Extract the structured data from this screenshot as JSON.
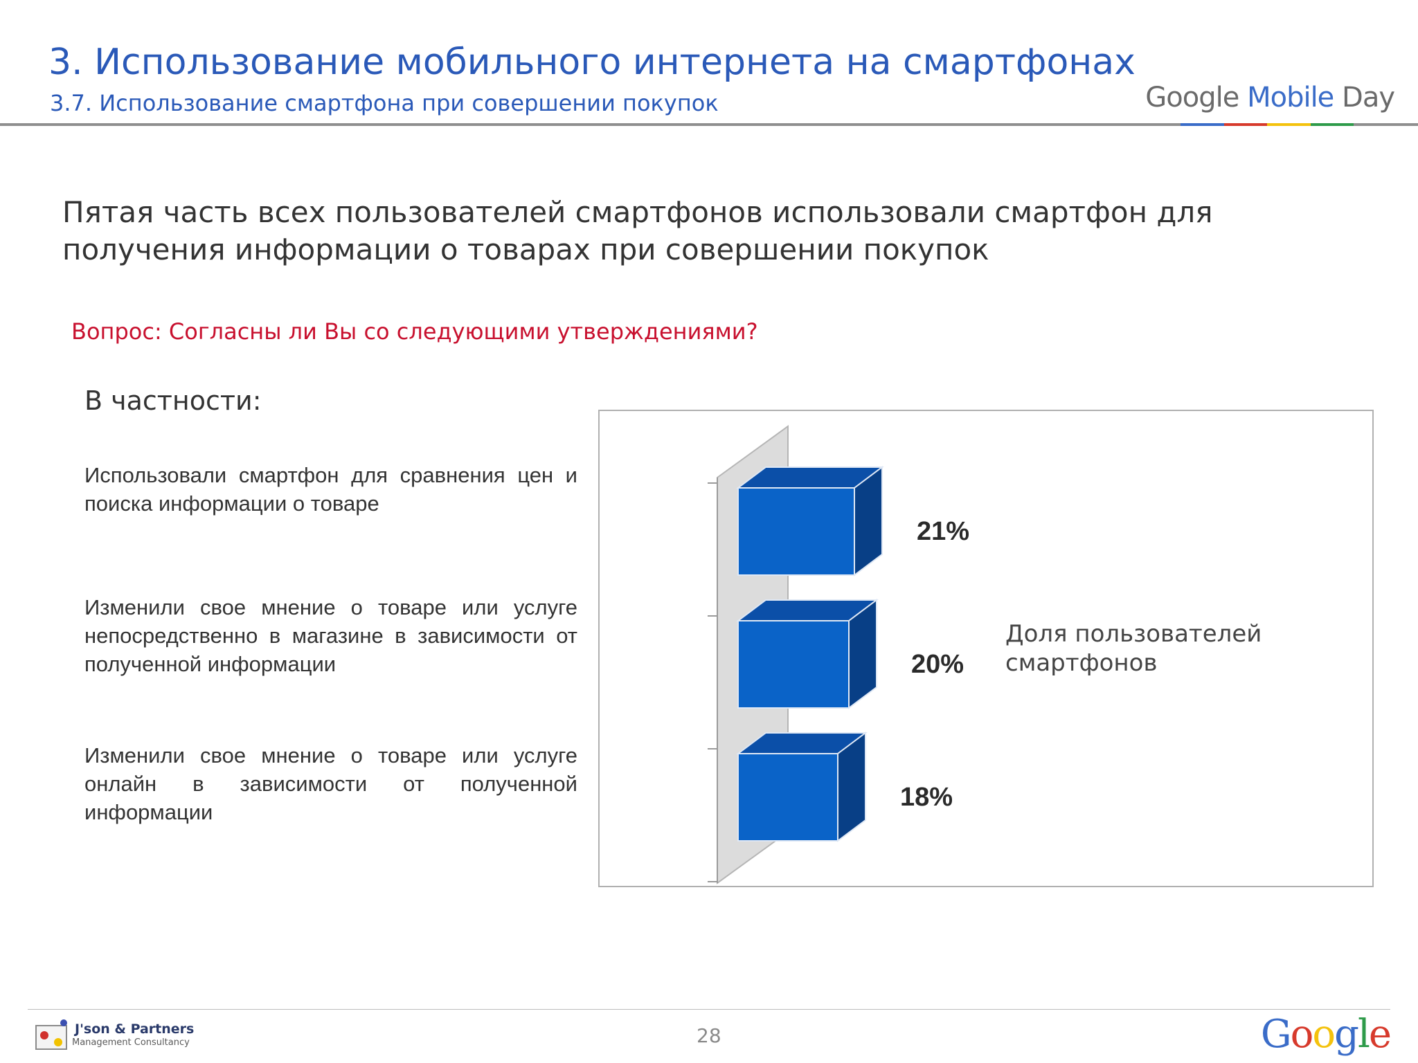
{
  "header": {
    "section_title": "3. Использование мобильного интернета на смартфонах",
    "subsection_title": "3.7. Использование смартфона при совершении покупок",
    "logo": {
      "google": "Google",
      "mobile": "Mobile",
      "day": "Day"
    }
  },
  "headline": "Пятая часть всех пользователей смартфонов использовали смартфон для получения информации о товарах при совершении покупок",
  "question": "Вопрос: Согласны ли Вы со следующими утверждениями?",
  "specifically_label": "В частности:",
  "statements": [
    "Использовали смартфон для сравнения цен и поиска информации о товаре",
    "Изменили свое мнение о товаре или услуге непосредственно в магазине в зависимости от полученной информации",
    "Изменили свое мнение о товаре или услуге онлайн в зависимости от полученной информации"
  ],
  "chart_data": {
    "type": "bar",
    "orientation": "horizontal",
    "style": "3d",
    "categories": [
      "Использовали смартфон для сравнения цен и поиска информации о товаре",
      "Изменили свое мнение о товаре или услуге непосредственно в магазине в зависимости от полученной информации",
      "Изменили свое мнение о товаре или услуге онлайн в зависимости от полученной информации"
    ],
    "series": [
      {
        "name": "Доля пользователей смартфонов",
        "values": [
          21,
          20,
          18
        ]
      }
    ],
    "value_labels": [
      "21%",
      "20%",
      "18%"
    ],
    "legend": "right",
    "grid": false,
    "colors": {
      "front": "#0a63c8",
      "top": "#0b4fa8",
      "side": "#083f86",
      "wall": "#dcdcdc"
    }
  },
  "footer": {
    "page_number": "28",
    "partner_name": "J'son & Partners",
    "partner_tagline": "Management Consultancy",
    "google_logo": "Google"
  },
  "colors": {
    "title_blue": "#2a59b8",
    "question_red": "#c8102e",
    "google_stripe": [
      "#3a6cc8",
      "#d73a2c",
      "#f4c20d",
      "#2e9b4a"
    ]
  }
}
